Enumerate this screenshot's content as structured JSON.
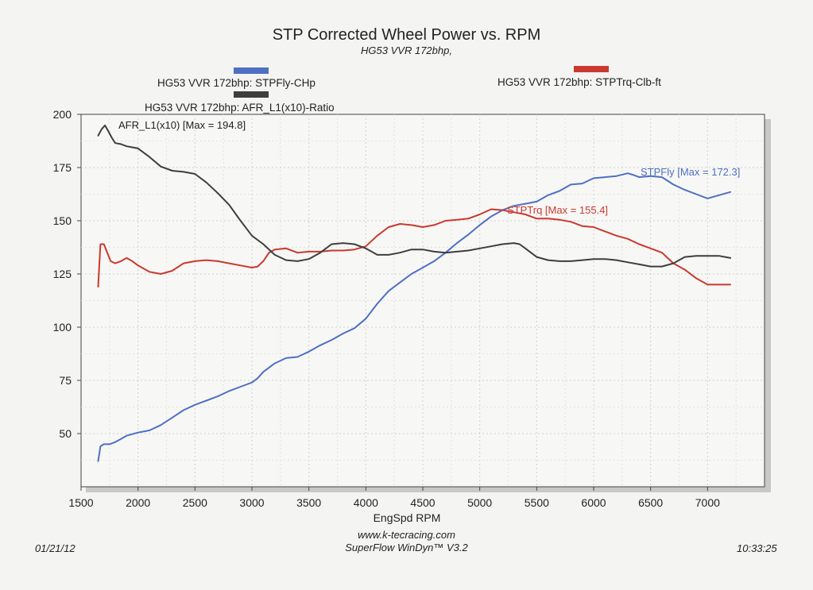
{
  "header": {
    "title": "STP Corrected Wheel Power vs. RPM",
    "subtitle": "HG53 VVR 172bhp,"
  },
  "legend": {
    "power_label": "HG53 VVR 172bhp: STPFly-CHp",
    "torque_label": "HG53 VVR 172bhp: STPTrq-Clb-ft",
    "afr_label": "HG53 VVR 172bhp: AFR_L1(x10)-Ratio"
  },
  "footer": {
    "date": "01/21/12",
    "website": "www.k-tecracing.com",
    "software": "SuperFlow WinDyn™ V3.2",
    "time": "10:33:25"
  },
  "chart_data": {
    "type": "line",
    "title": "STP Corrected Wheel Power vs. RPM",
    "subtitle": "HG53 VVR 172bhp,",
    "xlabel": "EngSpd RPM",
    "ylabel": "",
    "xlim": [
      1500,
      7500
    ],
    "ylim": [
      25,
      200
    ],
    "x_ticks": [
      1500,
      2000,
      2500,
      3000,
      3500,
      4000,
      4500,
      5000,
      5500,
      6000,
      6500,
      7000
    ],
    "y_ticks": [
      50,
      75,
      100,
      125,
      150,
      175,
      200
    ],
    "grid": true,
    "annotations": [
      {
        "text": "AFR_L1(x10) [Max = 194.8]",
        "series": "afr"
      },
      {
        "text": "STPFly [Max = 172.3]",
        "series": "power"
      },
      {
        "text": "STPTrq [Max = 155.4]",
        "series": "torque"
      }
    ],
    "series": [
      {
        "name": "HG53 VVR 172bhp: STPFly-CHp",
        "key": "power",
        "color": "#4f6fc4",
        "x": [
          1650,
          1670,
          1700,
          1750,
          1800,
          1850,
          1900,
          2000,
          2100,
          2200,
          2300,
          2400,
          2500,
          2600,
          2700,
          2800,
          2900,
          3000,
          3050,
          3100,
          3200,
          3300,
          3400,
          3500,
          3600,
          3700,
          3800,
          3900,
          4000,
          4100,
          4200,
          4300,
          4400,
          4500,
          4600,
          4700,
          4800,
          4900,
          5000,
          5100,
          5200,
          5300,
          5400,
          5500,
          5600,
          5700,
          5800,
          5900,
          6000,
          6100,
          6200,
          6300,
          6350,
          6400,
          6500,
          6600,
          6700,
          6800,
          6900,
          7000,
          7100,
          7200
        ],
        "y": [
          37,
          44,
          45,
          45,
          46,
          47.5,
          49,
          50.5,
          51.5,
          54,
          57.5,
          61,
          63.5,
          65.5,
          67.5,
          70,
          72,
          74,
          76,
          79,
          83,
          85.5,
          86,
          88.5,
          91.5,
          94,
          97,
          99.5,
          104,
          111,
          117,
          121,
          125,
          128,
          131,
          135,
          139.5,
          143.5,
          148,
          152,
          155,
          157,
          158,
          159,
          162,
          164,
          167,
          167.5,
          170,
          170.5,
          171,
          172.3,
          171.5,
          170.5,
          171,
          170.5,
          167,
          164.5,
          162.5,
          160.5,
          162,
          163.5
        ]
      },
      {
        "name": "HG53 VVR 172bhp: STPTrq-Clb-ft",
        "key": "torque",
        "color": "#c9392f",
        "x": [
          1650,
          1670,
          1700,
          1730,
          1760,
          1800,
          1850,
          1900,
          1950,
          2000,
          2100,
          2200,
          2300,
          2400,
          2500,
          2600,
          2700,
          2800,
          2900,
          3000,
          3050,
          3100,
          3150,
          3200,
          3300,
          3400,
          3500,
          3600,
          3700,
          3800,
          3900,
          4000,
          4100,
          4200,
          4300,
          4400,
          4500,
          4600,
          4700,
          4800,
          4900,
          5000,
          5100,
          5200,
          5300,
          5400,
          5500,
          5600,
          5700,
          5800,
          5900,
          6000,
          6100,
          6200,
          6300,
          6400,
          6500,
          6600,
          6700,
          6800,
          6900,
          7000,
          7100,
          7200
        ],
        "y": [
          119,
          139,
          139,
          135,
          131,
          130,
          131,
          132.5,
          131,
          129,
          126,
          125,
          126.5,
          130,
          131,
          131.5,
          131,
          130,
          129,
          128,
          128.5,
          131,
          135,
          136.5,
          137,
          135,
          135.5,
          135.5,
          136,
          136,
          136.5,
          138,
          143,
          147,
          148.5,
          148,
          147,
          148,
          150,
          150.5,
          151,
          153,
          155.4,
          155,
          154,
          153,
          151,
          151,
          150.5,
          149.5,
          147.5,
          147,
          145,
          143,
          141.5,
          139,
          137,
          135,
          130,
          127,
          123,
          120,
          120,
          120
        ]
      },
      {
        "name": "HG53 VVR 172bhp: AFR_L1(x10)-Ratio",
        "key": "afr",
        "color": "#3e3e3e",
        "x": [
          1650,
          1680,
          1710,
          1740,
          1770,
          1800,
          1850,
          1900,
          1950,
          2000,
          2100,
          2200,
          2300,
          2400,
          2500,
          2600,
          2700,
          2800,
          2900,
          3000,
          3100,
          3200,
          3300,
          3400,
          3500,
          3600,
          3700,
          3800,
          3900,
          4000,
          4100,
          4200,
          4300,
          4400,
          4500,
          4600,
          4700,
          4800,
          4900,
          5000,
          5100,
          5200,
          5300,
          5350,
          5400,
          5500,
          5600,
          5700,
          5800,
          5900,
          6000,
          6100,
          6200,
          6300,
          6400,
          6500,
          6600,
          6700,
          6800,
          6900,
          7000,
          7100,
          7200
        ],
        "y": [
          190,
          193,
          194.8,
          192,
          189,
          186.5,
          186,
          185,
          184.5,
          184,
          180,
          175.5,
          173.5,
          173,
          172,
          168,
          163,
          157.5,
          150,
          143,
          139,
          134,
          131.5,
          131,
          132,
          135,
          139,
          139.5,
          139,
          137,
          134,
          134,
          135,
          136.5,
          136.5,
          135.5,
          135,
          135.5,
          136,
          137,
          138,
          139,
          139.5,
          139,
          137,
          133,
          131.5,
          131,
          131,
          131.5,
          132,
          132,
          131.5,
          130.5,
          129.5,
          128.5,
          128.5,
          130,
          133,
          133.5,
          133.5,
          133.5,
          132.5
        ]
      }
    ]
  }
}
